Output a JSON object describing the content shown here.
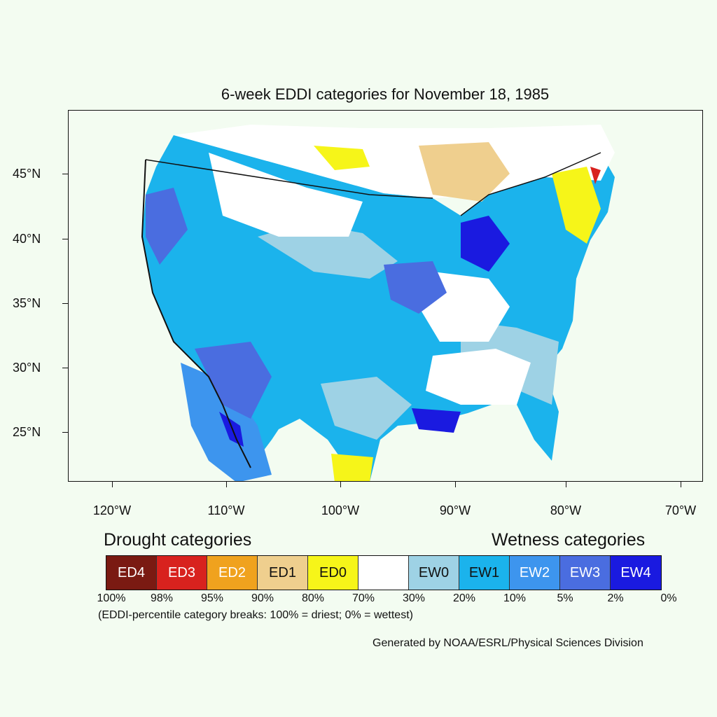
{
  "title": "6-week EDDI categories for November 18, 1985",
  "lat_labels": [
    "45°N",
    "40°N",
    "35°N",
    "30°N",
    "25°N"
  ],
  "lon_labels": [
    "120°W",
    "110°W",
    "100°W",
    "90°W",
    "80°W",
    "70°W"
  ],
  "drought_heading": "Drought categories",
  "wetness_heading": "Wetness categories",
  "legend": [
    {
      "label": "ED4",
      "color": "#7a1a12",
      "text_color": "#ffffff"
    },
    {
      "label": "ED3",
      "color": "#d8221e",
      "text_color": "#ffffff"
    },
    {
      "label": "ED2",
      "color": "#f0a21e",
      "text_color": "#ffffff"
    },
    {
      "label": "ED1",
      "color": "#efcf8e",
      "text_color": "#111111"
    },
    {
      "label": "ED0",
      "color": "#f6f519",
      "text_color": "#111111"
    },
    {
      "label": "",
      "color": "#ffffff",
      "text_color": "#111111"
    },
    {
      "label": "EW0",
      "color": "#9ed2e5",
      "text_color": "#111111"
    },
    {
      "label": "EW1",
      "color": "#1bb3ec",
      "text_color": "#111111"
    },
    {
      "label": "EW2",
      "color": "#3d95ee",
      "text_color": "#ffffff"
    },
    {
      "label": "EW3",
      "color": "#4a6de0",
      "text_color": "#ffffff"
    },
    {
      "label": "EW4",
      "color": "#1a1ae0",
      "text_color": "#ffffff"
    }
  ],
  "percentiles": [
    "100%",
    "98%",
    "95%",
    "90%",
    "80%",
    "70%",
    "30%",
    "20%",
    "10%",
    "5%",
    "2%",
    "0%"
  ],
  "note": "(EDDI-percentile category breaks: 100% = driest; 0% = wettest)",
  "credit": "Generated by NOAA/ESRL/Physical Sciences Division"
}
